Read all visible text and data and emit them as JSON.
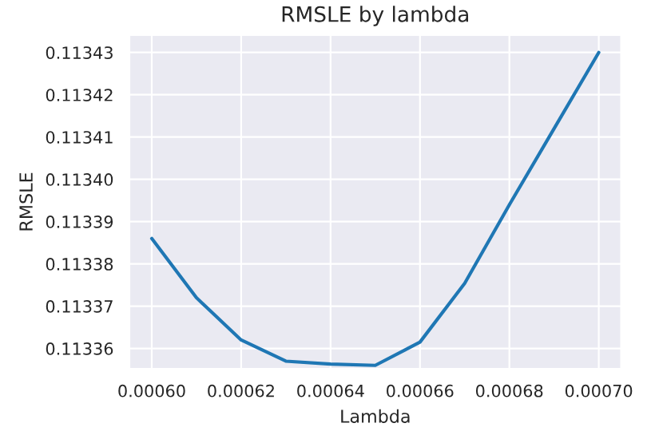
{
  "chart_data": {
    "type": "line",
    "title": "RMSLE by lambda",
    "xlabel": "Lambda",
    "ylabel": "RMSLE",
    "x": [
      0.0006,
      0.00061,
      0.00062,
      0.00063,
      0.00064,
      0.00065,
      0.00066,
      0.00067,
      0.00068,
      0.00069,
      0.0007
    ],
    "series": [
      {
        "color": "#1f77b4",
        "values": [
          0.113386,
          0.113372,
          0.113362,
          0.113357,
          0.1133563,
          0.113356,
          0.1133615,
          0.1133754,
          0.113394,
          0.113412,
          0.11343
        ]
      }
    ],
    "xlim": [
      0.000595,
      0.000705
    ],
    "xticks": [
      {
        "value": 0.0006,
        "label": "0.00060"
      },
      {
        "value": 0.00062,
        "label": "0.00062"
      },
      {
        "value": 0.00064,
        "label": "0.00064"
      },
      {
        "value": 0.00066,
        "label": "0.00066"
      },
      {
        "value": 0.00068,
        "label": "0.00068"
      },
      {
        "value": 0.0007,
        "label": "0.00070"
      }
    ],
    "ylim": [
      0.1133552,
      0.1134341
    ],
    "yticks": [
      0.11336,
      0.11337,
      0.11338,
      0.11339,
      {
        "value": 0.1134,
        "label": "0.11340"
      },
      0.11341,
      0.11342,
      0.11343
    ],
    "grid": true
  }
}
